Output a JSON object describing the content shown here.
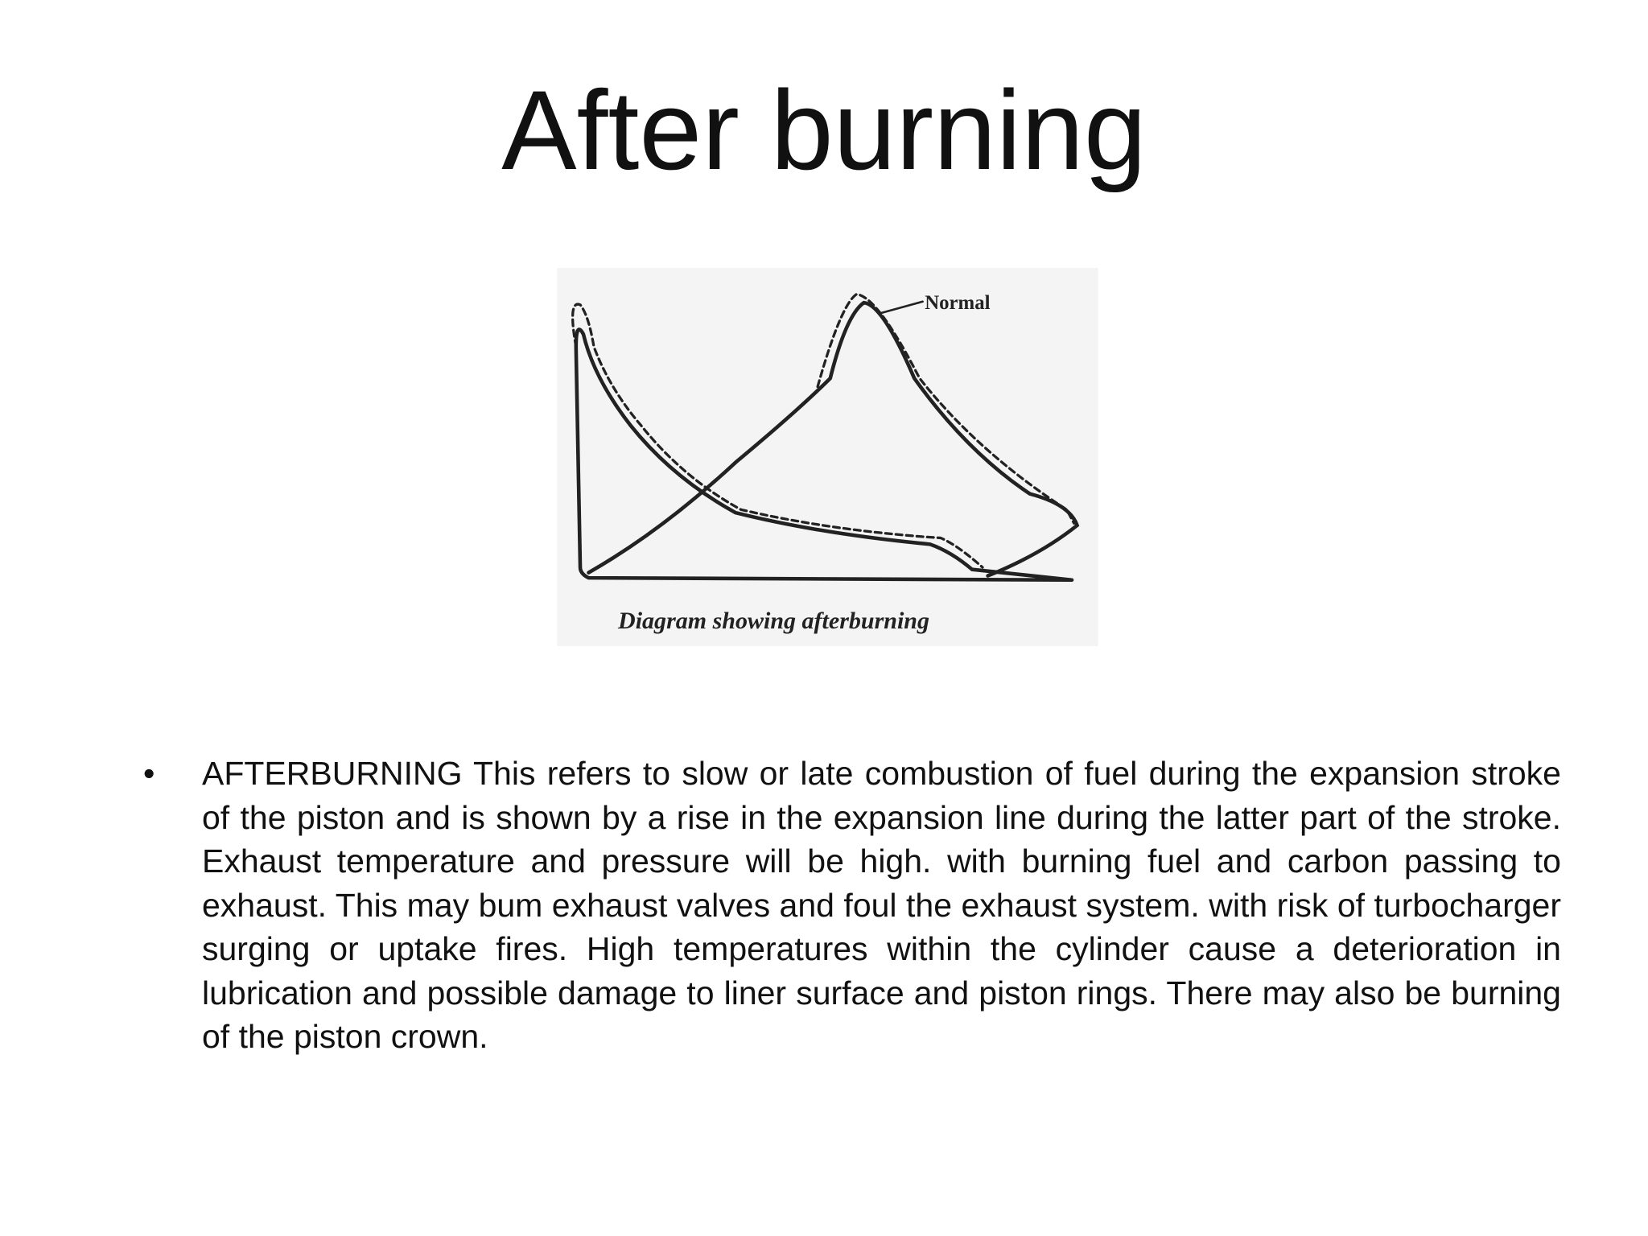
{
  "title": "After burning",
  "figure": {
    "label": "Normal",
    "caption": "Diagram showing afterburning"
  },
  "bullets": [
    "AFTERBURNING This refers to slow or late combustion of fuel during the expansion stroke of the piston and is shown by a rise in the expansion line during the latter part of the stroke.  Exhaust temperature and pressure will be high. with burning fuel and carbon passing to exhaust. This may bum exhaust valves and foul the exhaust system. with risk of turbocharger surging or uptake fires. High temperatures within the cylinder cause a deterioration in lubrication and possible damage to liner surface and piston rings. There may also be burning of the piston crown."
  ]
}
